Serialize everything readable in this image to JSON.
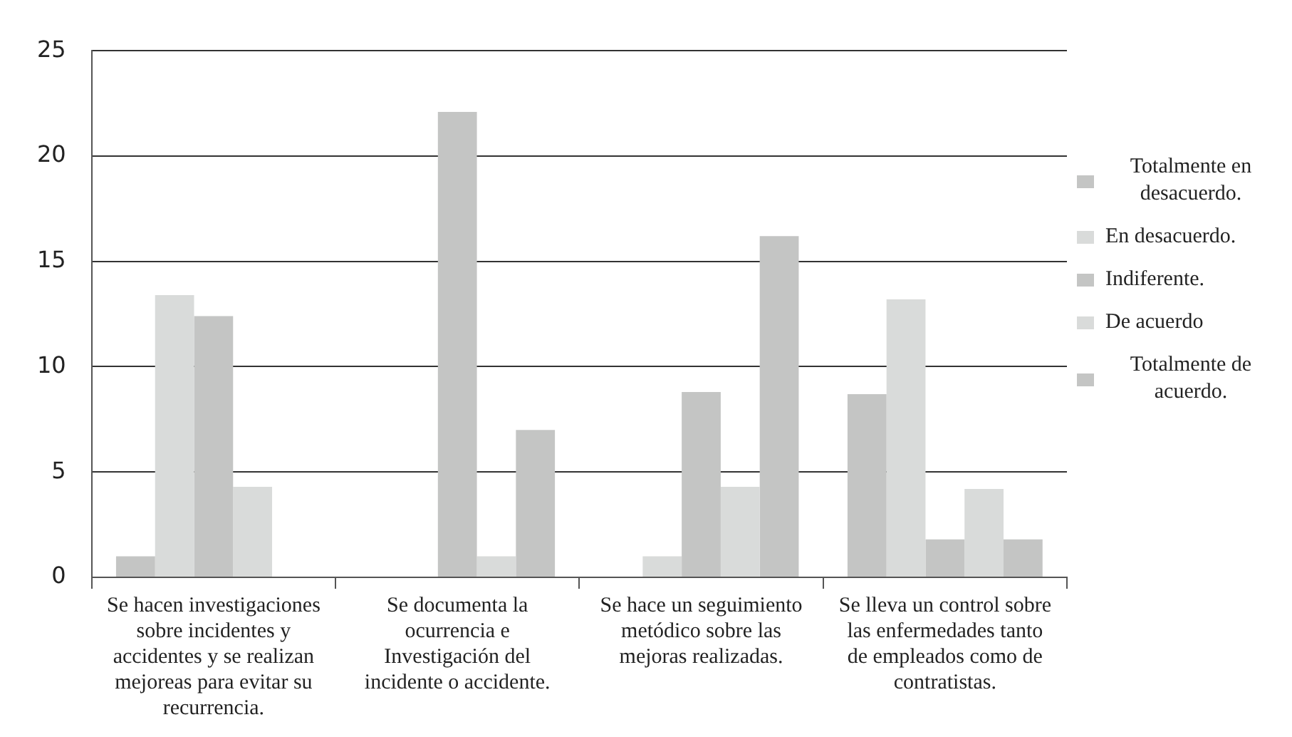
{
  "chart_data": {
    "type": "bar",
    "categories": [
      "Se hacen investigaciones sobre incidentes y accidentes y se realizan mejoreas para evitar su recurrencia.",
      "Se documenta la ocurrencia e Investigación del incidente o accidente.",
      "Se hace un seguimiento metódico sobre las mejoras realizadas.",
      "Se lleva un control sobre las enfermedades tanto de empleados como de contratistas."
    ],
    "series": [
      {
        "name": "Totalmente en desacuerdo.",
        "color": "#c4c5c4",
        "values": [
          1,
          0,
          0,
          8.7
        ]
      },
      {
        "name": "En desacuerdo.",
        "color": "#d9dbda",
        "values": [
          13.4,
          0,
          1,
          13.2
        ]
      },
      {
        "name": "Indiferente.",
        "color": "#c4c5c4",
        "values": [
          12.4,
          22.1,
          8.8,
          1.8
        ]
      },
      {
        "name": "De acuerdo",
        "color": "#d9dbda",
        "values": [
          4.3,
          1,
          4.3,
          4.2
        ]
      },
      {
        "name": "Totalmente de acuerdo.",
        "color": "#c4c5c4",
        "values": [
          0,
          7,
          16.2,
          1.8
        ]
      }
    ],
    "ylim": [
      0,
      25
    ],
    "yticks": [
      0,
      5,
      10,
      15,
      20,
      25
    ],
    "grid": "y",
    "legend": "right"
  }
}
